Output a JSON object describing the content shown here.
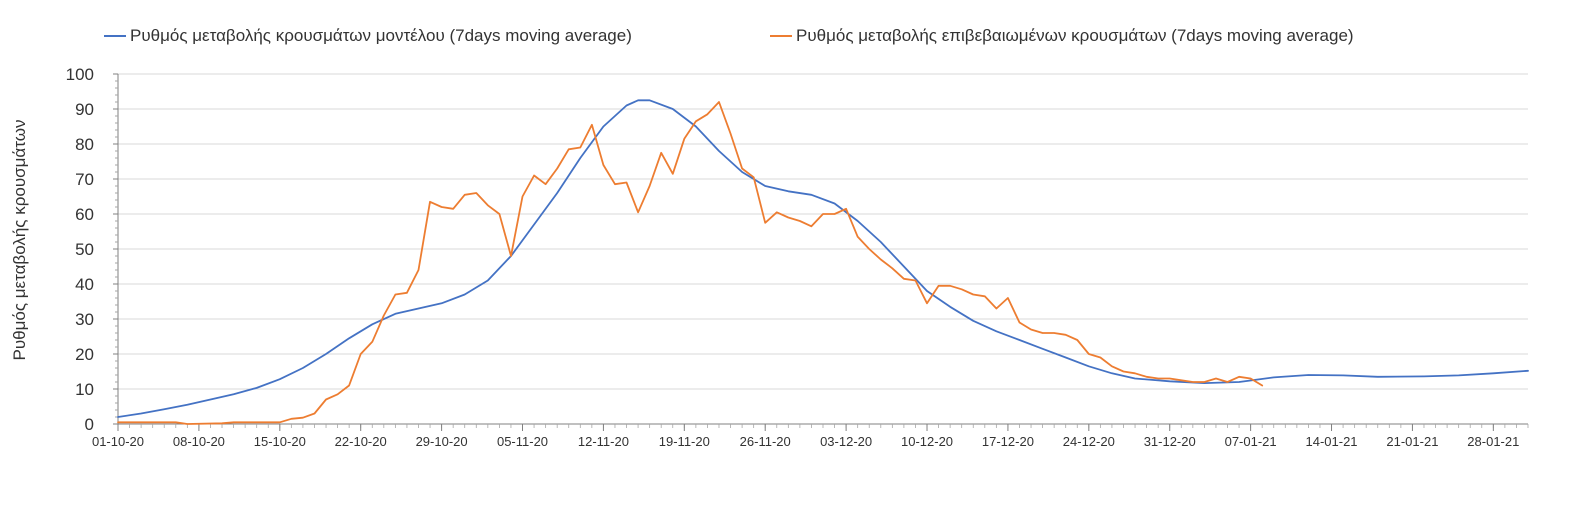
{
  "chart_data": {
    "type": "line",
    "xlabel": "",
    "ylabel": "Ρυθμός μεταβολής κρουσμάτων",
    "ylim": [
      0,
      100
    ],
    "yticks": [
      0,
      10,
      20,
      30,
      40,
      50,
      60,
      70,
      80,
      90,
      100
    ],
    "x_start": "01-10-20",
    "x_end": "31-01-21",
    "xtick_labels": [
      "01-10-20",
      "08-10-20",
      "15-10-20",
      "22-10-20",
      "29-10-20",
      "05-11-20",
      "12-11-20",
      "19-11-20",
      "26-11-20",
      "03-12-20",
      "10-12-20",
      "17-12-20",
      "24-12-20",
      "31-12-20",
      "07-01-21",
      "14-01-21",
      "21-01-21",
      "28-01-21"
    ],
    "grid": "horizontal",
    "legend_position": "top",
    "series": [
      {
        "name": "Ρυθμός μεταβολής κρουσμάτων μοντέλου (7days moving average)",
        "color": "#4472c4",
        "points": [
          [
            "01-10-20",
            2
          ],
          [
            "03-10-20",
            3
          ],
          [
            "05-10-20",
            4.2
          ],
          [
            "07-10-20",
            5.5
          ],
          [
            "09-10-20",
            7
          ],
          [
            "11-10-20",
            8.5
          ],
          [
            "13-10-20",
            10.3
          ],
          [
            "15-10-20",
            12.8
          ],
          [
            "17-10-20",
            16
          ],
          [
            "19-10-20",
            20
          ],
          [
            "21-10-20",
            24.5
          ],
          [
            "23-10-20",
            28.5
          ],
          [
            "25-10-20",
            31.5
          ],
          [
            "27-10-20",
            33
          ],
          [
            "29-10-20",
            34.5
          ],
          [
            "31-10-20",
            37
          ],
          [
            "02-11-20",
            41
          ],
          [
            "04-11-20",
            48
          ],
          [
            "06-11-20",
            57
          ],
          [
            "08-11-20",
            66
          ],
          [
            "10-11-20",
            76
          ],
          [
            "12-11-20",
            85
          ],
          [
            "14-11-20",
            91
          ],
          [
            "15-11-20",
            92.5
          ],
          [
            "16-11-20",
            92.5
          ],
          [
            "18-11-20",
            90
          ],
          [
            "20-11-20",
            85
          ],
          [
            "22-11-20",
            78
          ],
          [
            "24-11-20",
            72
          ],
          [
            "26-11-20",
            68
          ],
          [
            "28-11-20",
            66.5
          ],
          [
            "30-11-20",
            65.5
          ],
          [
            "02-12-20",
            63
          ],
          [
            "04-12-20",
            58
          ],
          [
            "06-12-20",
            52
          ],
          [
            "08-12-20",
            45
          ],
          [
            "10-12-20",
            38
          ],
          [
            "12-12-20",
            33.5
          ],
          [
            "14-12-20",
            29.5
          ],
          [
            "16-12-20",
            26.5
          ],
          [
            "18-12-20",
            24
          ],
          [
            "20-12-20",
            21.5
          ],
          [
            "22-12-20",
            19
          ],
          [
            "24-12-20",
            16.5
          ],
          [
            "26-12-20",
            14.5
          ],
          [
            "28-12-20",
            13
          ],
          [
            "31-12-20",
            12.2
          ],
          [
            "03-01-21",
            11.7
          ],
          [
            "06-01-21",
            12
          ],
          [
            "09-01-21",
            13.3
          ],
          [
            "12-01-21",
            14
          ],
          [
            "15-01-21",
            13.9
          ],
          [
            "18-01-21",
            13.5
          ],
          [
            "22-01-21",
            13.6
          ],
          [
            "25-01-21",
            13.9
          ],
          [
            "28-01-21",
            14.5
          ],
          [
            "31-01-21",
            15.2
          ]
        ]
      },
      {
        "name": "Ρυθμός μεταβολής επιβεβαιωμένων κρουσμάτων (7days moving average)",
        "color": "#ed7d31",
        "points": [
          [
            "01-10-20",
            0.5
          ],
          [
            "06-10-20",
            0.5
          ],
          [
            "07-10-20",
            0
          ],
          [
            "10-10-20",
            0.2
          ],
          [
            "11-10-20",
            0.5
          ],
          [
            "15-10-20",
            0.5
          ],
          [
            "16-10-20",
            1.5
          ],
          [
            "17-10-20",
            1.8
          ],
          [
            "18-10-20",
            3
          ],
          [
            "19-10-20",
            7
          ],
          [
            "20-10-20",
            8.5
          ],
          [
            "21-10-20",
            11
          ],
          [
            "22-10-20",
            20
          ],
          [
            "23-10-20",
            23.5
          ],
          [
            "24-10-20",
            31
          ],
          [
            "25-10-20",
            37
          ],
          [
            "26-10-20",
            37.5
          ],
          [
            "27-10-20",
            44
          ],
          [
            "28-10-20",
            63.5
          ],
          [
            "29-10-20",
            62
          ],
          [
            "30-10-20",
            61.5
          ],
          [
            "31-10-20",
            65.5
          ],
          [
            "01-11-20",
            66
          ],
          [
            "02-11-20",
            62.5
          ],
          [
            "03-11-20",
            60
          ],
          [
            "04-11-20",
            48
          ],
          [
            "05-11-20",
            65
          ],
          [
            "06-11-20",
            71
          ],
          [
            "07-11-20",
            68.5
          ],
          [
            "08-11-20",
            73
          ],
          [
            "09-11-20",
            78.5
          ],
          [
            "10-11-20",
            79
          ],
          [
            "11-11-20",
            85.5
          ],
          [
            "12-11-20",
            74
          ],
          [
            "13-11-20",
            68.5
          ],
          [
            "14-11-20",
            69
          ],
          [
            "15-11-20",
            60.5
          ],
          [
            "16-11-20",
            68
          ],
          [
            "17-11-20",
            77.5
          ],
          [
            "18-11-20",
            71.5
          ],
          [
            "19-11-20",
            81.5
          ],
          [
            "20-11-20",
            86.5
          ],
          [
            "21-11-20",
            88.5
          ],
          [
            "22-11-20",
            92
          ],
          [
            "23-11-20",
            83
          ],
          [
            "24-11-20",
            73
          ],
          [
            "25-11-20",
            70.5
          ],
          [
            "26-11-20",
            57.5
          ],
          [
            "27-11-20",
            60.5
          ],
          [
            "28-11-20",
            59
          ],
          [
            "29-11-20",
            58
          ],
          [
            "30-11-20",
            56.5
          ],
          [
            "01-12-20",
            60
          ],
          [
            "02-12-20",
            60
          ],
          [
            "03-12-20",
            61.5
          ],
          [
            "04-12-20",
            53.5
          ],
          [
            "05-12-20",
            50
          ],
          [
            "06-12-20",
            47
          ],
          [
            "07-12-20",
            44.5
          ],
          [
            "08-12-20",
            41.5
          ],
          [
            "09-12-20",
            41
          ],
          [
            "10-12-20",
            34.5
          ],
          [
            "11-12-20",
            39.5
          ],
          [
            "12-12-20",
            39.5
          ],
          [
            "13-12-20",
            38.5
          ],
          [
            "14-12-20",
            37
          ],
          [
            "15-12-20",
            36.5
          ],
          [
            "16-12-20",
            33
          ],
          [
            "17-12-20",
            36
          ],
          [
            "18-12-20",
            29
          ],
          [
            "19-12-20",
            27
          ],
          [
            "20-12-20",
            26
          ],
          [
            "21-12-20",
            26
          ],
          [
            "22-12-20",
            25.5
          ],
          [
            "23-12-20",
            24
          ],
          [
            "24-12-20",
            20
          ],
          [
            "25-12-20",
            19
          ],
          [
            "26-12-20",
            16.5
          ],
          [
            "27-12-20",
            15
          ],
          [
            "28-12-20",
            14.5
          ],
          [
            "29-12-20",
            13.5
          ],
          [
            "30-12-20",
            13
          ],
          [
            "31-12-20",
            13
          ],
          [
            "01-01-21",
            12.5
          ],
          [
            "02-01-21",
            12
          ],
          [
            "03-01-21",
            12
          ],
          [
            "04-01-21",
            13
          ],
          [
            "05-01-21",
            12
          ],
          [
            "06-01-21",
            13.5
          ],
          [
            "07-01-21",
            13
          ],
          [
            "08-01-21",
            11
          ]
        ]
      }
    ]
  }
}
